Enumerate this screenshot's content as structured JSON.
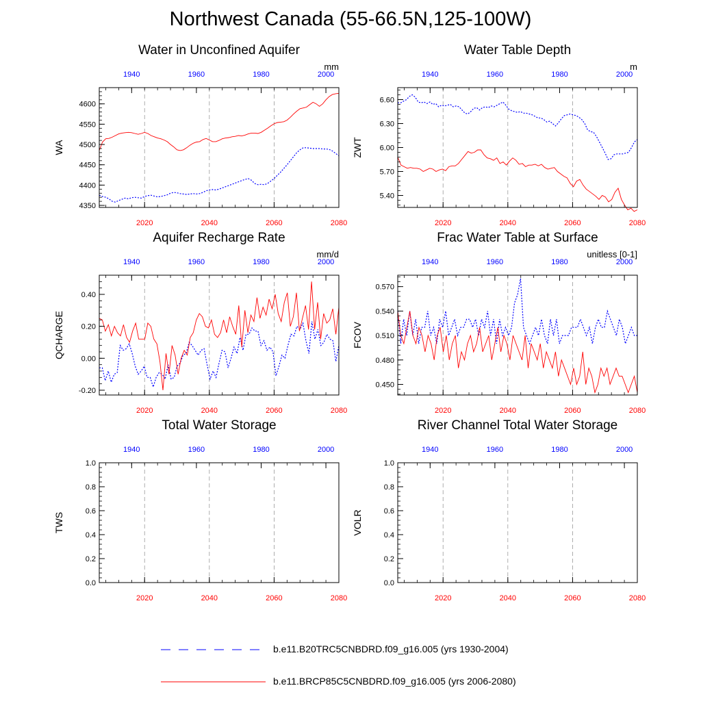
{
  "page": {
    "title": "Northwest Canada (55-66.5N,125-100W)"
  },
  "colors": {
    "historical": "#0000ff",
    "future": "#ff0000",
    "grid": "#999999",
    "axis": "#000000"
  },
  "legend": {
    "historical_label": "b.e11.B20TRC5CNBDRD.f09_g16.005 (yrs 1930-2004)",
    "future_label": "b.e11.BRCP85C5CNBDRD.f09_g16.005 (yrs 2006-2080)"
  },
  "chart_data": [
    {
      "id": "wa",
      "type": "line",
      "title": "Water in Unconfined Aquifer",
      "ylabel": "WA",
      "units": "mm",
      "ylim": [
        4345,
        4640
      ],
      "yticks": [
        4350,
        4400,
        4450,
        4500,
        4550,
        4600
      ],
      "ytick_labels": [
        "4350",
        "4400",
        "4450",
        "4500",
        "4550",
        "4600"
      ],
      "xlim_bottom": [
        2006,
        2080
      ],
      "xticks_bottom": [
        2020,
        2040,
        2060,
        2080
      ],
      "xlim_top": [
        1930,
        2004
      ],
      "xticks_top": [
        1940,
        1960,
        1980,
        2000
      ],
      "series": [
        {
          "role": "historical",
          "values": [
            4375,
            4372,
            4370,
            4366,
            4360,
            4358,
            4362,
            4365,
            4368,
            4366,
            4369,
            4370,
            4369,
            4368,
            4372,
            4374,
            4375,
            4373,
            4371,
            4372,
            4374,
            4376,
            4380,
            4382,
            4381,
            4379,
            4378,
            4377,
            4378,
            4379,
            4378,
            4379,
            4382,
            4386,
            4388,
            4389,
            4388,
            4390,
            4393,
            4396,
            4399,
            4402,
            4405,
            4408,
            4411,
            4414,
            4416,
            4412,
            4404,
            4401,
            4402,
            4401,
            4404,
            4410,
            4416,
            4424,
            4432,
            4441,
            4450,
            4460,
            4470,
            4480,
            4487,
            4492,
            4492,
            4491,
            4490,
            4490,
            4490,
            4489,
            4489,
            4488,
            4484,
            4478,
            4472
          ]
        },
        {
          "role": "future",
          "values": [
            4485,
            4506,
            4514,
            4515,
            4518,
            4522,
            4526,
            4528,
            4529,
            4530,
            4529,
            4527,
            4525,
            4527,
            4530,
            4527,
            4522,
            4519,
            4516,
            4514,
            4511,
            4507,
            4500,
            4494,
            4487,
            4485,
            4487,
            4492,
            4498,
            4503,
            4506,
            4507,
            4512,
            4515,
            4511,
            4507,
            4507,
            4510,
            4514,
            4516,
            4517,
            4519,
            4520,
            4522,
            4521,
            4523,
            4526,
            4528,
            4528,
            4527,
            4530,
            4535,
            4540,
            4546,
            4551,
            4554,
            4555,
            4556,
            4560,
            4567,
            4575,
            4582,
            4588,
            4590,
            4592,
            4598,
            4604,
            4600,
            4594,
            4600,
            4610,
            4618,
            4623,
            4625,
            4626
          ]
        }
      ]
    },
    {
      "id": "zwt",
      "type": "line",
      "title": "Water Table Depth",
      "ylabel": "ZWT",
      "units": "m",
      "ylim": [
        5.25,
        6.75
      ],
      "yticks": [
        5.4,
        5.7,
        6.0,
        6.3,
        6.6
      ],
      "ytick_labels": [
        "5.40",
        "5.70",
        "6.00",
        "6.30",
        "6.60"
      ],
      "xlim_bottom": [
        2006,
        2080
      ],
      "xticks_bottom": [
        2020,
        2040,
        2060,
        2080
      ],
      "xlim_top": [
        1930,
        2004
      ],
      "xticks_top": [
        1940,
        1960,
        1980,
        2000
      ],
      "series": [
        {
          "role": "historical",
          "values": [
            6.56,
            6.56,
            6.58,
            6.6,
            6.64,
            6.66,
            6.63,
            6.57,
            6.56,
            6.57,
            6.55,
            6.57,
            6.54,
            6.55,
            6.51,
            6.53,
            6.52,
            6.53,
            6.54,
            6.51,
            6.52,
            6.51,
            6.47,
            6.43,
            6.42,
            6.45,
            6.49,
            6.5,
            6.47,
            6.5,
            6.51,
            6.5,
            6.52,
            6.51,
            6.53,
            6.55,
            6.57,
            6.53,
            6.48,
            6.46,
            6.45,
            6.44,
            6.45,
            6.43,
            6.43,
            6.42,
            6.41,
            6.39,
            6.37,
            6.37,
            6.35,
            6.32,
            6.33,
            6.3,
            6.27,
            6.31,
            6.36,
            6.4,
            6.41,
            6.42,
            6.41,
            6.4,
            6.38,
            6.35,
            6.3,
            6.22,
            6.2,
            6.19,
            6.14,
            6.07,
            6.0,
            5.93,
            5.85,
            5.86,
            5.91,
            5.92,
            5.92,
            5.92,
            5.93,
            5.94,
            6.0,
            6.07,
            6.1
          ]
        },
        {
          "role": "future",
          "values": [
            5.88,
            5.78,
            5.76,
            5.74,
            5.75,
            5.74,
            5.74,
            5.73,
            5.7,
            5.72,
            5.74,
            5.73,
            5.7,
            5.72,
            5.73,
            5.71,
            5.76,
            5.77,
            5.77,
            5.8,
            5.85,
            5.9,
            5.95,
            5.93,
            5.94,
            5.97,
            5.97,
            5.91,
            5.87,
            5.86,
            5.84,
            5.87,
            5.8,
            5.82,
            5.78,
            5.83,
            5.87,
            5.84,
            5.79,
            5.8,
            5.76,
            5.78,
            5.78,
            5.79,
            5.77,
            5.79,
            5.75,
            5.73,
            5.74,
            5.75,
            5.7,
            5.67,
            5.64,
            5.62,
            5.55,
            5.51,
            5.58,
            5.6,
            5.53,
            5.48,
            5.45,
            5.42,
            5.39,
            5.35,
            5.4,
            5.38,
            5.32,
            5.35,
            5.44,
            5.49,
            5.35,
            5.28,
            5.22,
            5.24,
            5.2,
            5.22
          ]
        }
      ]
    },
    {
      "id": "qcharge",
      "type": "line",
      "title": "Aquifer Recharge Rate",
      "ylabel": "QCHARGE",
      "units": "mm/d",
      "ylim": [
        -0.23,
        0.52
      ],
      "yticks": [
        -0.2,
        0.0,
        0.2,
        0.4
      ],
      "ytick_labels": [
        "-0.20",
        "0.00",
        "0.20",
        "0.40"
      ],
      "xlim_bottom": [
        2006,
        2080
      ],
      "xticks_bottom": [
        2020,
        2040,
        2060,
        2080
      ],
      "xlim_top": [
        1930,
        2004
      ],
      "xticks_top": [
        1940,
        1960,
        1980,
        2000
      ],
      "series": [
        {
          "role": "historical",
          "values": [
            -0.06,
            -0.06,
            -0.14,
            -0.08,
            -0.15,
            -0.1,
            -0.09,
            0.08,
            0.05,
            0.06,
            0.09,
            0.03,
            -0.05,
            -0.1,
            -0.08,
            -0.05,
            -0.12,
            -0.12,
            -0.18,
            -0.12,
            -0.09,
            -0.1,
            -0.13,
            -0.04,
            -0.13,
            -0.12,
            -0.05,
            -0.03,
            0.02,
            0.03,
            0.1,
            0.08,
            0.05,
            0.02,
            0.05,
            0.06,
            -0.04,
            -0.13,
            -0.08,
            -0.12,
            -0.03,
            0.05,
            0.04,
            -0.06,
            0.0,
            0.07,
            0.03,
            0.13,
            0.05,
            0.15,
            0.15,
            0.19,
            0.17,
            0.17,
            0.08,
            0.11,
            0.05,
            0.07,
            0.04,
            -0.11,
            -0.05,
            0.02,
            0.0,
            0.08,
            0.15,
            0.14,
            0.2,
            0.18,
            0.22,
            0.11,
            0.03,
            0.23,
            0.12,
            0.18,
            0.08,
            0.1,
            0.15,
            0.12,
            0.11,
            -0.02,
            0.08
          ]
        },
        {
          "role": "future",
          "values": [
            0.25,
            0.24,
            0.17,
            0.21,
            0.14,
            0.2,
            0.16,
            0.14,
            0.21,
            0.13,
            0.1,
            0.17,
            0.22,
            0.12,
            0.12,
            0.12,
            0.22,
            0.2,
            0.12,
            0.09,
            -0.02,
            -0.2,
            0.03,
            -0.1,
            0.08,
            0.02,
            -0.1,
            0.0,
            0.05,
            0.02,
            0.13,
            0.16,
            0.24,
            0.28,
            0.26,
            0.2,
            0.19,
            0.24,
            0.15,
            0.13,
            0.16,
            0.24,
            0.16,
            0.26,
            0.2,
            0.15,
            0.33,
            0.07,
            0.3,
            0.16,
            0.27,
            0.23,
            0.38,
            0.25,
            0.32,
            0.27,
            0.37,
            0.31,
            0.4,
            0.28,
            0.23,
            0.35,
            0.41,
            0.2,
            0.26,
            0.41,
            0.17,
            0.25,
            0.33,
            0.18,
            0.48,
            0.18,
            0.35,
            0.12,
            0.28,
            0.22,
            0.24,
            0.31,
            0.15,
            0.32
          ]
        }
      ]
    },
    {
      "id": "fcov",
      "type": "line",
      "title": "Frac Water Table at Surface",
      "ylabel": "FCOV",
      "units": "unitless [0-1]",
      "ylim": [
        0.437,
        0.584
      ],
      "yticks": [
        0.45,
        0.48,
        0.51,
        0.54,
        0.57
      ],
      "ytick_labels": [
        "0.450",
        "0.480",
        "0.510",
        "0.540",
        "0.570"
      ],
      "xlim_bottom": [
        2006,
        2080
      ],
      "xticks_bottom": [
        2020,
        2040,
        2060,
        2080
      ],
      "xlim_top": [
        1930,
        2004
      ],
      "xticks_top": [
        1940,
        1960,
        1980,
        2000
      ],
      "series": [
        {
          "role": "historical",
          "values": [
            0.54,
            0.5,
            0.53,
            0.51,
            0.54,
            0.51,
            0.53,
            0.5,
            0.52,
            0.52,
            0.54,
            0.51,
            0.52,
            0.5,
            0.53,
            0.52,
            0.54,
            0.51,
            0.52,
            0.53,
            0.51,
            0.52,
            0.52,
            0.53,
            0.53,
            0.52,
            0.53,
            0.51,
            0.53,
            0.52,
            0.54,
            0.51,
            0.53,
            0.5,
            0.53,
            0.51,
            0.52,
            0.51,
            0.52,
            0.55,
            0.56,
            0.58,
            0.52,
            0.51,
            0.5,
            0.51,
            0.52,
            0.51,
            0.53,
            0.51,
            0.5,
            0.53,
            0.51,
            0.53,
            0.5,
            0.51,
            0.51,
            0.51,
            0.52,
            0.52,
            0.52,
            0.53,
            0.52,
            0.51,
            0.52,
            0.5,
            0.52,
            0.53,
            0.52,
            0.52,
            0.54,
            0.53,
            0.52,
            0.51,
            0.53,
            0.52,
            0.5,
            0.51,
            0.52,
            0.51,
            0.51
          ]
        },
        {
          "role": "future",
          "values": [
            0.54,
            0.51,
            0.5,
            0.52,
            0.54,
            0.51,
            0.5,
            0.52,
            0.51,
            0.49,
            0.51,
            0.5,
            0.48,
            0.51,
            0.52,
            0.49,
            0.51,
            0.48,
            0.5,
            0.51,
            0.47,
            0.49,
            0.48,
            0.5,
            0.51,
            0.49,
            0.5,
            0.52,
            0.49,
            0.5,
            0.51,
            0.48,
            0.5,
            0.52,
            0.49,
            0.51,
            0.5,
            0.48,
            0.51,
            0.5,
            0.49,
            0.48,
            0.51,
            0.47,
            0.5,
            0.49,
            0.48,
            0.5,
            0.47,
            0.49,
            0.48,
            0.47,
            0.49,
            0.46,
            0.48,
            0.47,
            0.46,
            0.45,
            0.47,
            0.45,
            0.46,
            0.49,
            0.45,
            0.47,
            0.46,
            0.44,
            0.45,
            0.47,
            0.46,
            0.47,
            0.45,
            0.46,
            0.47,
            0.46,
            0.46,
            0.45,
            0.44,
            0.45,
            0.46,
            0.44
          ]
        }
      ]
    },
    {
      "id": "tws",
      "type": "line",
      "title": "Total Water Storage",
      "ylabel": "TWS",
      "units": "",
      "ylim": [
        0.0,
        1.0
      ],
      "yticks": [
        0.0,
        0.2,
        0.4,
        0.6,
        0.8,
        1.0
      ],
      "ytick_labels": [
        "0.0",
        "0.2",
        "0.4",
        "0.6",
        "0.8",
        "1.0"
      ],
      "xlim_bottom": [
        2006,
        2080
      ],
      "xticks_bottom": [
        2020,
        2040,
        2060,
        2080
      ],
      "xlim_top": [
        1930,
        2004
      ],
      "xticks_top": [
        1940,
        1960,
        1980,
        2000
      ],
      "series": []
    },
    {
      "id": "volr",
      "type": "line",
      "title": "River Channel Total Water Storage",
      "ylabel": "VOLR",
      "units": "",
      "ylim": [
        0.0,
        1.0
      ],
      "yticks": [
        0.0,
        0.2,
        0.4,
        0.6,
        0.8,
        1.0
      ],
      "ytick_labels": [
        "0.0",
        "0.2",
        "0.4",
        "0.6",
        "0.8",
        "1.0"
      ],
      "xlim_bottom": [
        2006,
        2080
      ],
      "xticks_bottom": [
        2020,
        2040,
        2060,
        2080
      ],
      "xlim_top": [
        1930,
        2004
      ],
      "xticks_top": [
        1940,
        1960,
        1980,
        2000
      ],
      "series": []
    }
  ]
}
